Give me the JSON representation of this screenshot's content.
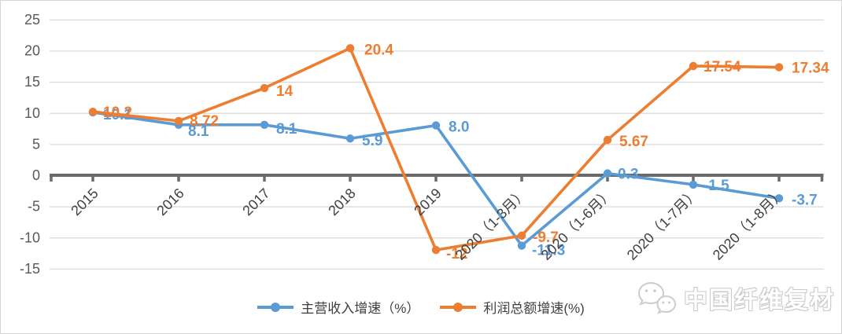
{
  "chart_data": {
    "type": "line",
    "categories": [
      "2015",
      "2016",
      "2017",
      "2018",
      "2019",
      "2020（1-3月）",
      "2020（1-6月）",
      "2020（1-7月）",
      "2020（1-8月）"
    ],
    "series": [
      {
        "name": "主营收入增速（%）",
        "color": "#5B9BD5",
        "values": [
          10.1,
          8.1,
          8.1,
          5.9,
          8.0,
          -11.3,
          0.3,
          -1.5,
          -3.7
        ],
        "labels": [
          "10.1",
          "8.1",
          "8.1",
          "5.9",
          "8.0",
          "-11.3",
          "0.3",
          "-1.5",
          "-3.7"
        ],
        "label_offsets": [
          [
            13,
            9
          ],
          [
            12,
            14
          ],
          [
            15,
            11
          ],
          [
            15,
            9
          ],
          [
            16,
            8
          ],
          [
            13,
            12
          ],
          [
            13,
            7
          ],
          [
            13,
            7
          ],
          [
            16,
            8
          ]
        ]
      },
      {
        "name": "利润总额增速(%)",
        "color": "#ED7D31",
        "values": [
          10.2,
          8.72,
          14,
          20.4,
          -12,
          -9.7,
          5.67,
          17.54,
          17.34
        ],
        "labels": [
          "10.2",
          "8.72",
          "14",
          "20.4",
          "-12",
          "-9.7",
          "5.67",
          "17.54",
          "17.34"
        ],
        "label_offsets": [
          [
            13,
            7
          ],
          [
            14,
            6
          ],
          [
            15,
            10
          ],
          [
            18,
            8
          ],
          [
            13,
            11
          ],
          [
            14,
            8
          ],
          [
            15,
            8
          ],
          [
            13,
            7
          ],
          [
            16,
            7
          ]
        ]
      }
    ],
    "y_axis": {
      "min": -15,
      "max": 25,
      "step": 5,
      "ticks": [
        25,
        20,
        15,
        10,
        5,
        0,
        -5,
        -10,
        -15
      ]
    },
    "x_axis": {
      "label_rotation": -45
    },
    "title": "",
    "xlabel": "",
    "ylabel": "",
    "grid": true,
    "legend_position": "bottom",
    "colors": {
      "gridline": "#D9D9D9",
      "zero_axis": "#6A6A6A",
      "y_tick_label": "#595959",
      "x_tick_label": "#404040"
    }
  },
  "legend": {
    "items": [
      {
        "label": "主营收入增速（%）",
        "color": "#5B9BD5"
      },
      {
        "label": "利润总额增速(%)",
        "color": "#ED7D31"
      }
    ]
  },
  "watermark": {
    "label": "中国纤维复材",
    "icon": "wechat-icon"
  }
}
